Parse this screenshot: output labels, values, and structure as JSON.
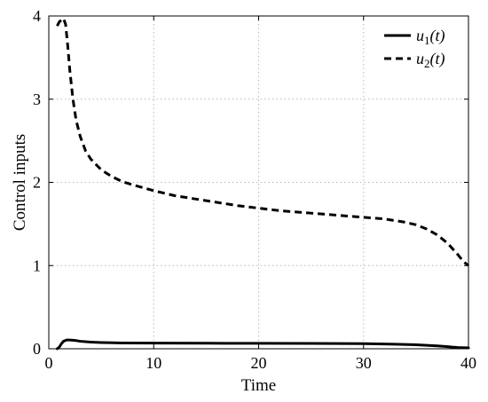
{
  "chart_data": {
    "type": "line",
    "title": "",
    "xlabel": "Time",
    "ylabel": "Control inputs",
    "xlim": [
      0,
      40
    ],
    "ylim": [
      0,
      4
    ],
    "xticks": [
      0,
      10,
      20,
      30,
      40
    ],
    "yticks": [
      0,
      1,
      2,
      3,
      4
    ],
    "grid": true,
    "legend_position": "top-right",
    "series": [
      {
        "name": "u₁(t)",
        "legend_base": "u",
        "legend_sub": "1",
        "legend_arg": "(t)",
        "style": "solid",
        "color": "#000000",
        "x": [
          0.8,
          1.0,
          1.2,
          1.4,
          1.7,
          2.0,
          2.5,
          3,
          4,
          5,
          7,
          10,
          15,
          20,
          25,
          30,
          33,
          35,
          37,
          38,
          39,
          40
        ],
        "y": [
          0.0,
          0.02,
          0.06,
          0.09,
          0.105,
          0.105,
          0.1,
          0.09,
          0.08,
          0.075,
          0.07,
          0.068,
          0.066,
          0.065,
          0.064,
          0.062,
          0.055,
          0.048,
          0.035,
          0.025,
          0.015,
          0.01
        ]
      },
      {
        "name": "u₂(t)",
        "legend_base": "u",
        "legend_sub": "2",
        "legend_arg": "(t)",
        "style": "dashed",
        "color": "#000000",
        "x": [
          0.8,
          1.0,
          1.2,
          1.4,
          1.6,
          1.8,
          2.0,
          2.3,
          2.6,
          3.0,
          3.5,
          4.0,
          5,
          6,
          7,
          8,
          10,
          12,
          15,
          18,
          20,
          22,
          25,
          28,
          30,
          32,
          33,
          34,
          35,
          36,
          37,
          38,
          39,
          39.5,
          40
        ],
        "y": [
          3.88,
          3.93,
          3.95,
          3.97,
          3.9,
          3.65,
          3.35,
          3.0,
          2.75,
          2.55,
          2.38,
          2.28,
          2.15,
          2.07,
          2.01,
          1.97,
          1.9,
          1.84,
          1.78,
          1.72,
          1.69,
          1.66,
          1.63,
          1.6,
          1.58,
          1.56,
          1.54,
          1.52,
          1.49,
          1.44,
          1.37,
          1.27,
          1.13,
          1.05,
          1.0
        ]
      }
    ]
  }
}
